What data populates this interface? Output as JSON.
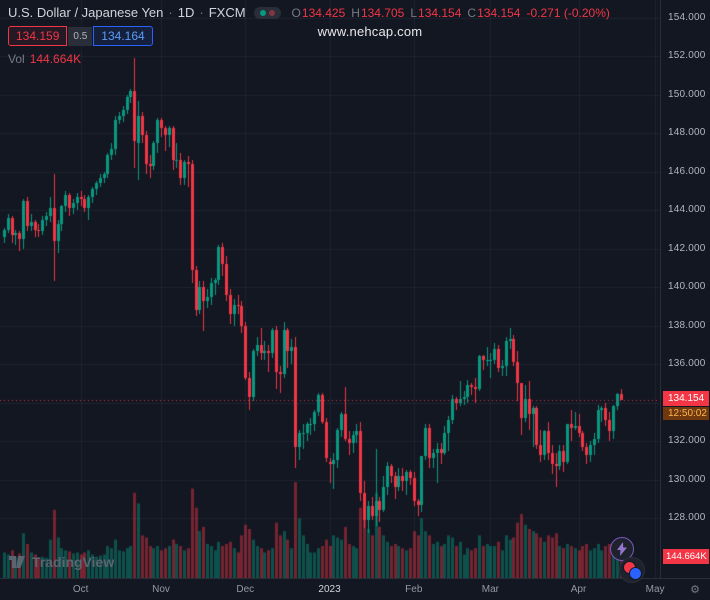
{
  "header": {
    "symbol_title": "U.S. Dollar / Japanese Yen",
    "separator": "·",
    "timeframe": "1D",
    "exchange": "FXCM",
    "ohlc": {
      "o_label": "O",
      "o": "134.425",
      "h_label": "H",
      "h": "134.705",
      "l_label": "L",
      "l": "134.154",
      "c_label": "C",
      "c": "134.154",
      "change": "-0.271 (-0.20%)"
    },
    "sell_price": "134.159",
    "spread": "0.5",
    "buy_price": "134.164",
    "vol_label": "Vol",
    "vol_value": "144.664K"
  },
  "watermark": {
    "text": "www.nehcap.com"
  },
  "price_scale": {
    "last_price_label": "134.154",
    "countdown": "12:50:02",
    "volume_label": "144.664K"
  },
  "footer": {
    "logo_text": "TradingView"
  },
  "icons": {
    "gear": "⚙"
  },
  "colors": {
    "up": "#089981",
    "down": "#f23645",
    "background": "#131722",
    "grid": "rgba(178,181,190,0.08)",
    "sell_red": "#f23645",
    "buy_blue": "#2962ff"
  },
  "chart_data": {
    "type": "candlestick",
    "title": "U.S. Dollar / Japanese Yen",
    "symbol": "USDJPY",
    "interval": "1D",
    "source": "FXCM",
    "last_close": 134.154,
    "prev_close": 134.425,
    "change": -0.271,
    "change_pct": -0.2,
    "volume_unit": "K",
    "price_axis": {
      "tick_labels": [
        "154.000",
        "152.000",
        "150.000",
        "148.000",
        "146.000",
        "144.000",
        "142.000",
        "140.000",
        "138.000",
        "136.000",
        "132.000",
        "130.000",
        "128.000"
      ],
      "gridline_values": [
        154,
        152,
        150,
        148,
        146,
        144,
        142,
        140,
        138,
        136,
        134,
        132,
        130,
        128
      ],
      "visible_range": [
        126.9,
        154.9
      ]
    },
    "x_labels": [
      {
        "text": "Oct",
        "index": 20,
        "bright": false
      },
      {
        "text": "Nov",
        "index": 41,
        "bright": false
      },
      {
        "text": "Dec",
        "index": 63,
        "bright": false
      },
      {
        "text": "2023",
        "index": 85,
        "bright": true
      },
      {
        "text": "Feb",
        "index": 107,
        "bright": false
      },
      {
        "text": "Mar",
        "index": 127,
        "bright": false
      },
      {
        "text": "Apr",
        "index": 150,
        "bright": false
      },
      {
        "text": "May",
        "index": 170,
        "bright": false
      }
    ],
    "candles": [
      [
        142.6,
        143.1,
        142.3,
        143.0,
        120
      ],
      [
        143.0,
        143.8,
        142.8,
        143.6,
        110
      ],
      [
        143.6,
        143.7,
        142.3,
        142.7,
        130
      ],
      [
        142.7,
        143.0,
        142.2,
        142.8,
        100
      ],
      [
        142.8,
        142.9,
        141.9,
        142.5,
        115
      ],
      [
        142.5,
        144.6,
        142.0,
        144.5,
        210
      ],
      [
        144.5,
        144.7,
        142.9,
        143.2,
        160
      ],
      [
        143.2,
        143.8,
        142.9,
        143.4,
        120
      ],
      [
        143.4,
        143.5,
        142.6,
        143.0,
        110
      ],
      [
        143.0,
        143.3,
        142.6,
        142.9,
        90
      ],
      [
        142.9,
        143.7,
        142.7,
        143.5,
        100
      ],
      [
        143.5,
        143.9,
        143.2,
        143.7,
        95
      ],
      [
        143.7,
        144.7,
        143.4,
        144.1,
        180
      ],
      [
        144.1,
        145.9,
        140.3,
        142.4,
        320
      ],
      [
        142.4,
        143.5,
        141.8,
        143.3,
        190
      ],
      [
        143.3,
        144.3,
        142.9,
        144.2,
        140
      ],
      [
        144.2,
        145.0,
        143.9,
        144.8,
        130
      ],
      [
        144.8,
        144.9,
        143.7,
        144.1,
        125
      ],
      [
        144.1,
        144.6,
        143.8,
        144.4,
        115
      ],
      [
        144.4,
        144.9,
        144.0,
        144.7,
        120
      ],
      [
        144.7,
        145.0,
        144.2,
        144.6,
        110
      ],
      [
        144.6,
        144.8,
        143.9,
        144.1,
        120
      ],
      [
        144.1,
        144.8,
        143.5,
        144.7,
        130
      ],
      [
        144.7,
        145.2,
        144.4,
        145.1,
        110
      ],
      [
        145.1,
        145.5,
        144.8,
        145.4,
        100
      ],
      [
        145.4,
        145.9,
        145.2,
        145.7,
        105
      ],
      [
        145.7,
        146.0,
        145.4,
        145.9,
        110
      ],
      [
        145.9,
        147.0,
        145.7,
        146.9,
        150
      ],
      [
        146.9,
        147.5,
        146.6,
        147.2,
        140
      ],
      [
        147.2,
        148.9,
        146.9,
        148.7,
        180
      ],
      [
        148.7,
        149.1,
        148.5,
        148.9,
        130
      ],
      [
        148.9,
        149.4,
        148.6,
        149.2,
        125
      ],
      [
        149.2,
        150.0,
        149.0,
        149.9,
        140
      ],
      [
        149.9,
        150.3,
        149.6,
        150.2,
        150
      ],
      [
        150.2,
        151.9,
        146.2,
        147.6,
        400
      ],
      [
        147.5,
        149.7,
        145.6,
        148.9,
        350
      ],
      [
        148.9,
        149.1,
        147.5,
        147.9,
        200
      ],
      [
        147.9,
        148.1,
        145.9,
        146.4,
        190
      ],
      [
        146.4,
        146.9,
        145.7,
        146.3,
        150
      ],
      [
        146.3,
        147.6,
        146.1,
        147.5,
        140
      ],
      [
        147.5,
        148.8,
        147.0,
        148.7,
        150
      ],
      [
        148.7,
        148.8,
        147.8,
        148.3,
        130
      ],
      [
        148.3,
        148.4,
        147.1,
        147.9,
        140
      ],
      [
        147.9,
        148.4,
        147.3,
        148.3,
        150
      ],
      [
        148.3,
        148.4,
        146.1,
        146.6,
        180
      ],
      [
        146.6,
        147.5,
        146.2,
        146.6,
        160
      ],
      [
        146.6,
        147.0,
        145.3,
        145.7,
        150
      ],
      [
        145.7,
        146.6,
        145.3,
        146.5,
        130
      ],
      [
        146.5,
        146.8,
        145.2,
        146.4,
        140
      ],
      [
        146.4,
        146.6,
        140.2,
        140.9,
        420
      ],
      [
        140.9,
        141.1,
        138.5,
        138.8,
        330
      ],
      [
        138.8,
        140.3,
        138.6,
        140.0,
        220
      ],
      [
        140.0,
        140.3,
        137.7,
        139.3,
        240
      ],
      [
        139.3,
        139.9,
        138.9,
        139.5,
        160
      ],
      [
        139.5,
        140.5,
        139.1,
        140.2,
        150
      ],
      [
        140.2,
        140.5,
        139.6,
        140.4,
        130
      ],
      [
        140.4,
        142.2,
        140.1,
        142.1,
        170
      ],
      [
        142.1,
        142.3,
        140.6,
        141.2,
        150
      ],
      [
        141.2,
        141.6,
        139.3,
        139.6,
        160
      ],
      [
        139.6,
        139.9,
        138.1,
        138.6,
        170
      ],
      [
        138.6,
        139.4,
        138.0,
        139.1,
        140
      ],
      [
        139.1,
        139.6,
        138.6,
        139.0,
        120
      ],
      [
        139.0,
        139.3,
        137.6,
        138.0,
        200
      ],
      [
        138.0,
        138.2,
        135.2,
        135.3,
        250
      ],
      [
        135.3,
        135.6,
        133.6,
        134.3,
        230
      ],
      [
        134.3,
        136.8,
        134.1,
        136.7,
        180
      ],
      [
        136.7,
        137.4,
        136.4,
        137.0,
        150
      ],
      [
        137.0,
        137.9,
        136.2,
        136.6,
        140
      ],
      [
        136.6,
        137.2,
        136.2,
        136.7,
        120
      ],
      [
        136.7,
        137.0,
        135.6,
        136.6,
        130
      ],
      [
        136.6,
        137.9,
        136.3,
        137.8,
        140
      ],
      [
        137.8,
        138.0,
        134.7,
        135.6,
        260
      ],
      [
        135.6,
        135.9,
        134.5,
        135.5,
        200
      ],
      [
        135.5,
        138.2,
        135.3,
        137.8,
        220
      ],
      [
        137.8,
        137.9,
        135.8,
        136.7,
        180
      ],
      [
        136.7,
        137.3,
        136.0,
        136.9,
        140
      ],
      [
        136.9,
        137.4,
        130.6,
        131.7,
        450
      ],
      [
        131.7,
        132.6,
        131.0,
        132.4,
        280
      ],
      [
        132.4,
        132.9,
        131.6,
        132.4,
        200
      ],
      [
        132.4,
        133.0,
        132.0,
        132.9,
        160
      ],
      [
        132.9,
        133.2,
        132.3,
        132.9,
        120
      ],
      [
        132.9,
        133.6,
        132.5,
        133.5,
        120
      ],
      [
        133.5,
        134.5,
        133.3,
        134.4,
        140
      ],
      [
        134.4,
        134.5,
        132.9,
        133.0,
        150
      ],
      [
        133.0,
        133.2,
        130.9,
        131.1,
        180
      ],
      [
        130.9,
        131.1,
        129.8,
        130.8,
        150
      ],
      [
        130.8,
        131.4,
        129.5,
        131.0,
        200
      ],
      [
        131.0,
        132.7,
        130.6,
        132.6,
        190
      ],
      [
        132.6,
        133.5,
        132.2,
        133.4,
        180
      ],
      [
        133.4,
        134.8,
        132.0,
        132.1,
        240
      ],
      [
        132.1,
        132.5,
        131.3,
        131.9,
        160
      ],
      [
        131.9,
        132.5,
        131.4,
        132.3,
        150
      ],
      [
        132.3,
        132.9,
        131.9,
        132.5,
        140
      ],
      [
        132.5,
        133.0,
        128.9,
        129.3,
        330
      ],
      [
        129.3,
        129.9,
        127.5,
        127.9,
        290
      ],
      [
        127.9,
        128.9,
        127.2,
        128.6,
        230
      ],
      [
        128.6,
        129.1,
        127.9,
        128.1,
        200
      ],
      [
        128.1,
        131.6,
        127.6,
        128.9,
        400
      ],
      [
        128.9,
        129.1,
        127.8,
        128.4,
        240
      ],
      [
        128.4,
        130.2,
        128.3,
        129.6,
        200
      ],
      [
        129.6,
        130.9,
        129.2,
        130.7,
        170
      ],
      [
        130.7,
        130.8,
        129.8,
        130.2,
        150
      ],
      [
        130.2,
        130.4,
        129.0,
        129.6,
        160
      ],
      [
        129.6,
        130.6,
        129.4,
        130.2,
        150
      ],
      [
        130.2,
        130.6,
        129.4,
        129.9,
        140
      ],
      [
        129.9,
        130.5,
        129.2,
        130.4,
        130
      ],
      [
        130.4,
        130.5,
        129.7,
        130.1,
        140
      ],
      [
        130.1,
        130.4,
        128.6,
        128.9,
        220
      ],
      [
        128.9,
        129.0,
        128.1,
        128.7,
        200
      ],
      [
        128.7,
        131.2,
        128.3,
        131.2,
        280
      ],
      [
        131.2,
        132.9,
        131.0,
        132.7,
        220
      ],
      [
        132.7,
        132.9,
        130.6,
        131.1,
        200
      ],
      [
        131.1,
        131.6,
        130.6,
        131.4,
        160
      ],
      [
        131.4,
        131.9,
        129.8,
        131.6,
        170
      ],
      [
        131.6,
        131.9,
        130.8,
        131.4,
        150
      ],
      [
        131.4,
        132.8,
        131.3,
        132.4,
        160
      ],
      [
        132.4,
        133.3,
        131.5,
        133.1,
        200
      ],
      [
        133.1,
        134.4,
        132.9,
        134.2,
        190
      ],
      [
        134.2,
        134.3,
        133.6,
        134.0,
        150
      ],
      [
        134.0,
        135.1,
        133.8,
        134.2,
        170
      ],
      [
        134.2,
        134.6,
        133.9,
        134.3,
        110
      ],
      [
        134.3,
        135.2,
        134.0,
        134.9,
        140
      ],
      [
        134.9,
        135.0,
        134.4,
        134.8,
        130
      ],
      [
        134.8,
        135.3,
        134.0,
        134.7,
        140
      ],
      [
        134.7,
        136.5,
        134.6,
        136.4,
        200
      ],
      [
        136.4,
        136.5,
        135.7,
        136.2,
        150
      ],
      [
        136.2,
        136.9,
        135.9,
        136.2,
        160
      ],
      [
        136.2,
        136.6,
        135.3,
        136.2,
        150
      ],
      [
        136.2,
        137.1,
        136.0,
        136.8,
        150
      ],
      [
        136.8,
        137.0,
        135.6,
        135.8,
        170
      ],
      [
        135.8,
        136.2,
        135.4,
        135.9,
        130
      ],
      [
        135.9,
        137.4,
        135.4,
        137.2,
        200
      ],
      [
        137.2,
        137.9,
        136.8,
        137.3,
        180
      ],
      [
        137.3,
        137.5,
        135.9,
        136.1,
        190
      ],
      [
        136.1,
        136.7,
        134.1,
        135.0,
        260
      ],
      [
        135.0,
        135.0,
        132.3,
        133.2,
        300
      ],
      [
        133.2,
        134.9,
        133.0,
        134.2,
        250
      ],
      [
        134.2,
        135.1,
        132.6,
        133.4,
        230
      ],
      [
        133.4,
        133.8,
        131.7,
        133.7,
        220
      ],
      [
        133.7,
        133.8,
        131.6,
        131.8,
        210
      ],
      [
        131.8,
        132.6,
        130.9,
        131.3,
        190
      ],
      [
        131.3,
        132.6,
        131.0,
        132.5,
        170
      ],
      [
        132.5,
        133.0,
        131.0,
        131.4,
        200
      ],
      [
        131.4,
        131.8,
        130.3,
        130.8,
        190
      ],
      [
        130.8,
        131.4,
        129.6,
        130.7,
        210
      ],
      [
        130.7,
        131.8,
        130.5,
        131.5,
        150
      ],
      [
        131.5,
        131.8,
        130.4,
        130.9,
        140
      ],
      [
        130.9,
        132.9,
        130.8,
        132.9,
        160
      ],
      [
        132.9,
        133.6,
        132.0,
        132.7,
        150
      ],
      [
        132.7,
        133.5,
        132.6,
        132.8,
        140
      ],
      [
        132.8,
        133.4,
        132.2,
        132.4,
        130
      ],
      [
        132.4,
        132.5,
        131.5,
        131.7,
        150
      ],
      [
        131.7,
        131.9,
        130.8,
        131.3,
        160
      ],
      [
        131.3,
        132.0,
        130.9,
        131.8,
        130
      ],
      [
        131.8,
        132.4,
        131.3,
        132.1,
        140
      ],
      [
        132.1,
        133.9,
        131.9,
        133.6,
        160
      ],
      [
        133.6,
        133.8,
        133.0,
        133.7,
        130
      ],
      [
        133.7,
        134.0,
        132.8,
        133.1,
        150
      ],
      [
        133.1,
        133.5,
        132.0,
        132.5,
        160
      ],
      [
        132.5,
        133.9,
        132.1,
        133.8,
        150
      ],
      [
        133.8,
        134.5,
        133.6,
        134.425,
        120
      ],
      [
        134.425,
        134.705,
        134.154,
        134.154,
        144.664
      ]
    ]
  }
}
